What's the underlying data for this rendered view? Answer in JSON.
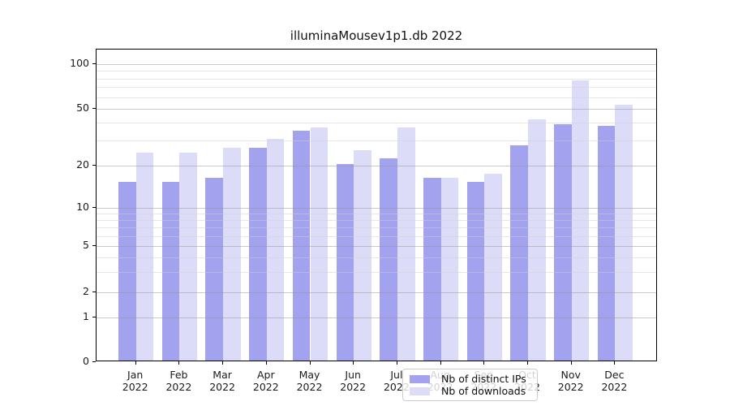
{
  "chart_data": {
    "type": "bar",
    "title": "illuminaMousev1p1.db 2022",
    "categories": [
      "Jan",
      "Feb",
      "Mar",
      "Apr",
      "May",
      "Jun",
      "Jul",
      "Aug",
      "Sep",
      "Oct",
      "Nov",
      "Dec"
    ],
    "category_year": "2022",
    "series": [
      {
        "name": "Nb of distinct IPs",
        "color": "#a2a2ee",
        "values": [
          15,
          15,
          16,
          26,
          34,
          20,
          22,
          16,
          15,
          27,
          38,
          37
        ]
      },
      {
        "name": "Nb of downloads",
        "color": "#dcdcf8",
        "values": [
          24,
          24,
          26,
          30,
          36,
          25,
          36,
          16,
          17,
          41,
          76,
          52
        ]
      }
    ],
    "ylabel": "",
    "xlabel": "",
    "yscale": "log-above-1 (symlog/asinh style)",
    "ytick_values": [
      0,
      1,
      2,
      5,
      10,
      20,
      50,
      100
    ],
    "ytick_labels": [
      "0",
      "1",
      "2",
      "5",
      "10",
      "20",
      "50",
      "100"
    ],
    "minor_ytick_values": [
      3,
      4,
      6,
      7,
      8,
      9,
      30,
      40,
      60,
      70,
      80,
      90
    ],
    "ylim": [
      0,
      126
    ],
    "grid": "on",
    "legend_position": "lower center"
  }
}
